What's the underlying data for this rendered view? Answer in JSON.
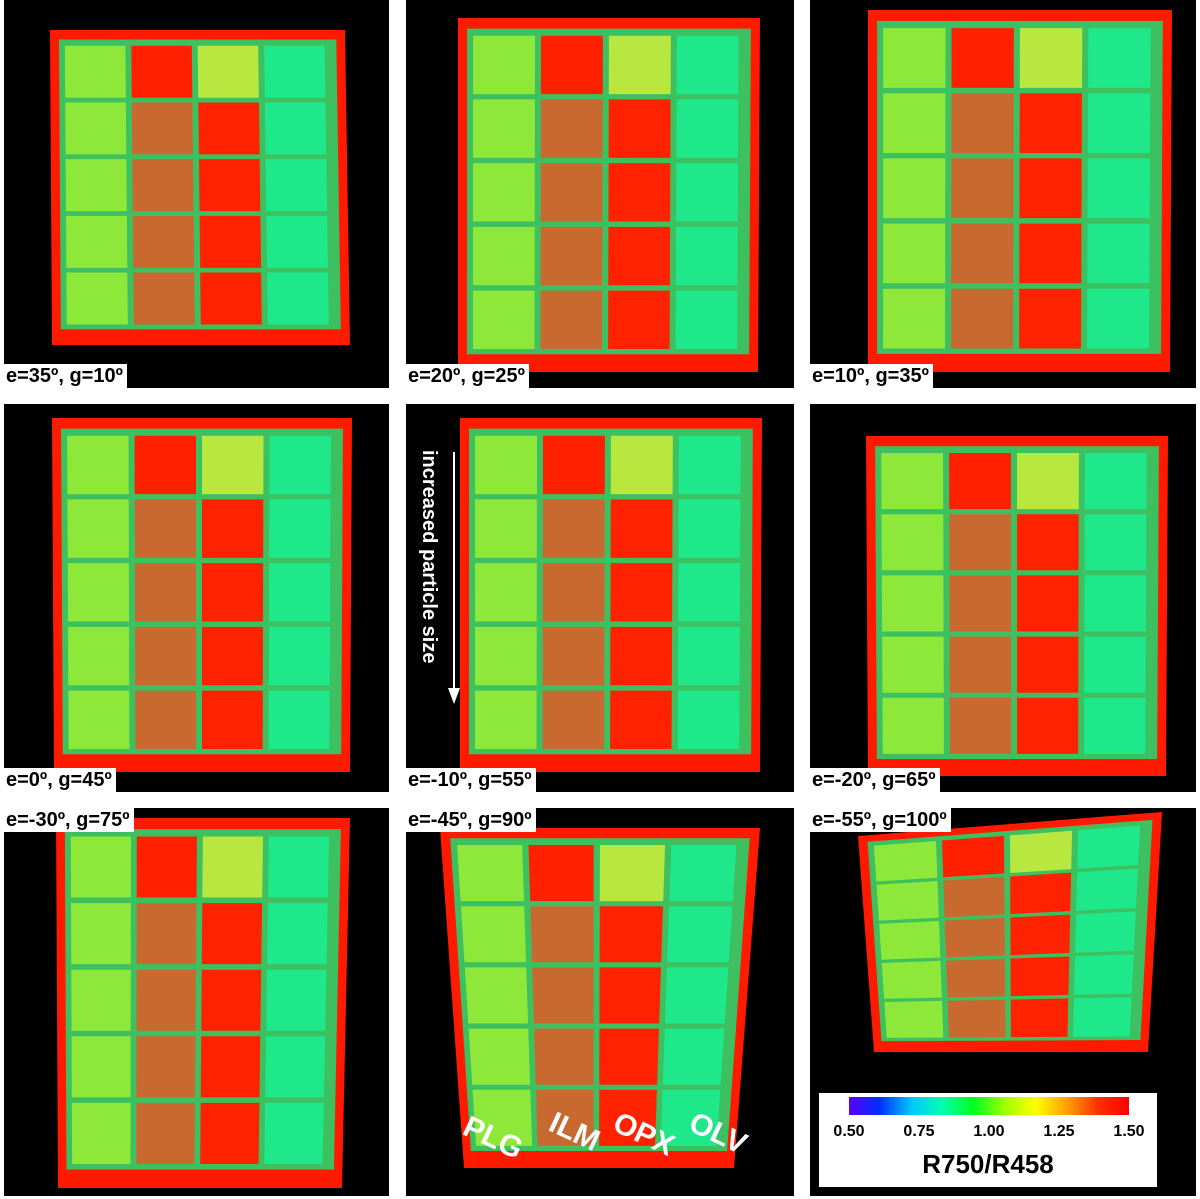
{
  "panels": [
    {
      "label": "e=35º, g=10º"
    },
    {
      "label": "e=20º, g=25º"
    },
    {
      "label": "e=10º, g=35º"
    },
    {
      "label": "e=0º, g=45º"
    },
    {
      "label": "e=-10º, g=55º"
    },
    {
      "label": "e=-20º, g=65º"
    },
    {
      "label": "e=-30º, g=75º"
    },
    {
      "label": "e=-45º, g=90º"
    },
    {
      "label": "e=-55º, g=100º"
    }
  ],
  "arrow_annotation": "increased particle size",
  "columns": [
    "PLG",
    "ILM",
    "OPX",
    "OLV"
  ],
  "colorbar": {
    "title": "R750/R458",
    "ticks": [
      "0.50",
      "0.75",
      "1.00",
      "1.25",
      "1.50"
    ],
    "min": 0.5,
    "max": 1.5
  },
  "colors": {
    "background": "#000000",
    "frame": "#ff1a00",
    "plg": "#8ee83a",
    "ilm": "#c86a30",
    "opx": "#ff2200",
    "olv": "#1ee88a"
  }
}
